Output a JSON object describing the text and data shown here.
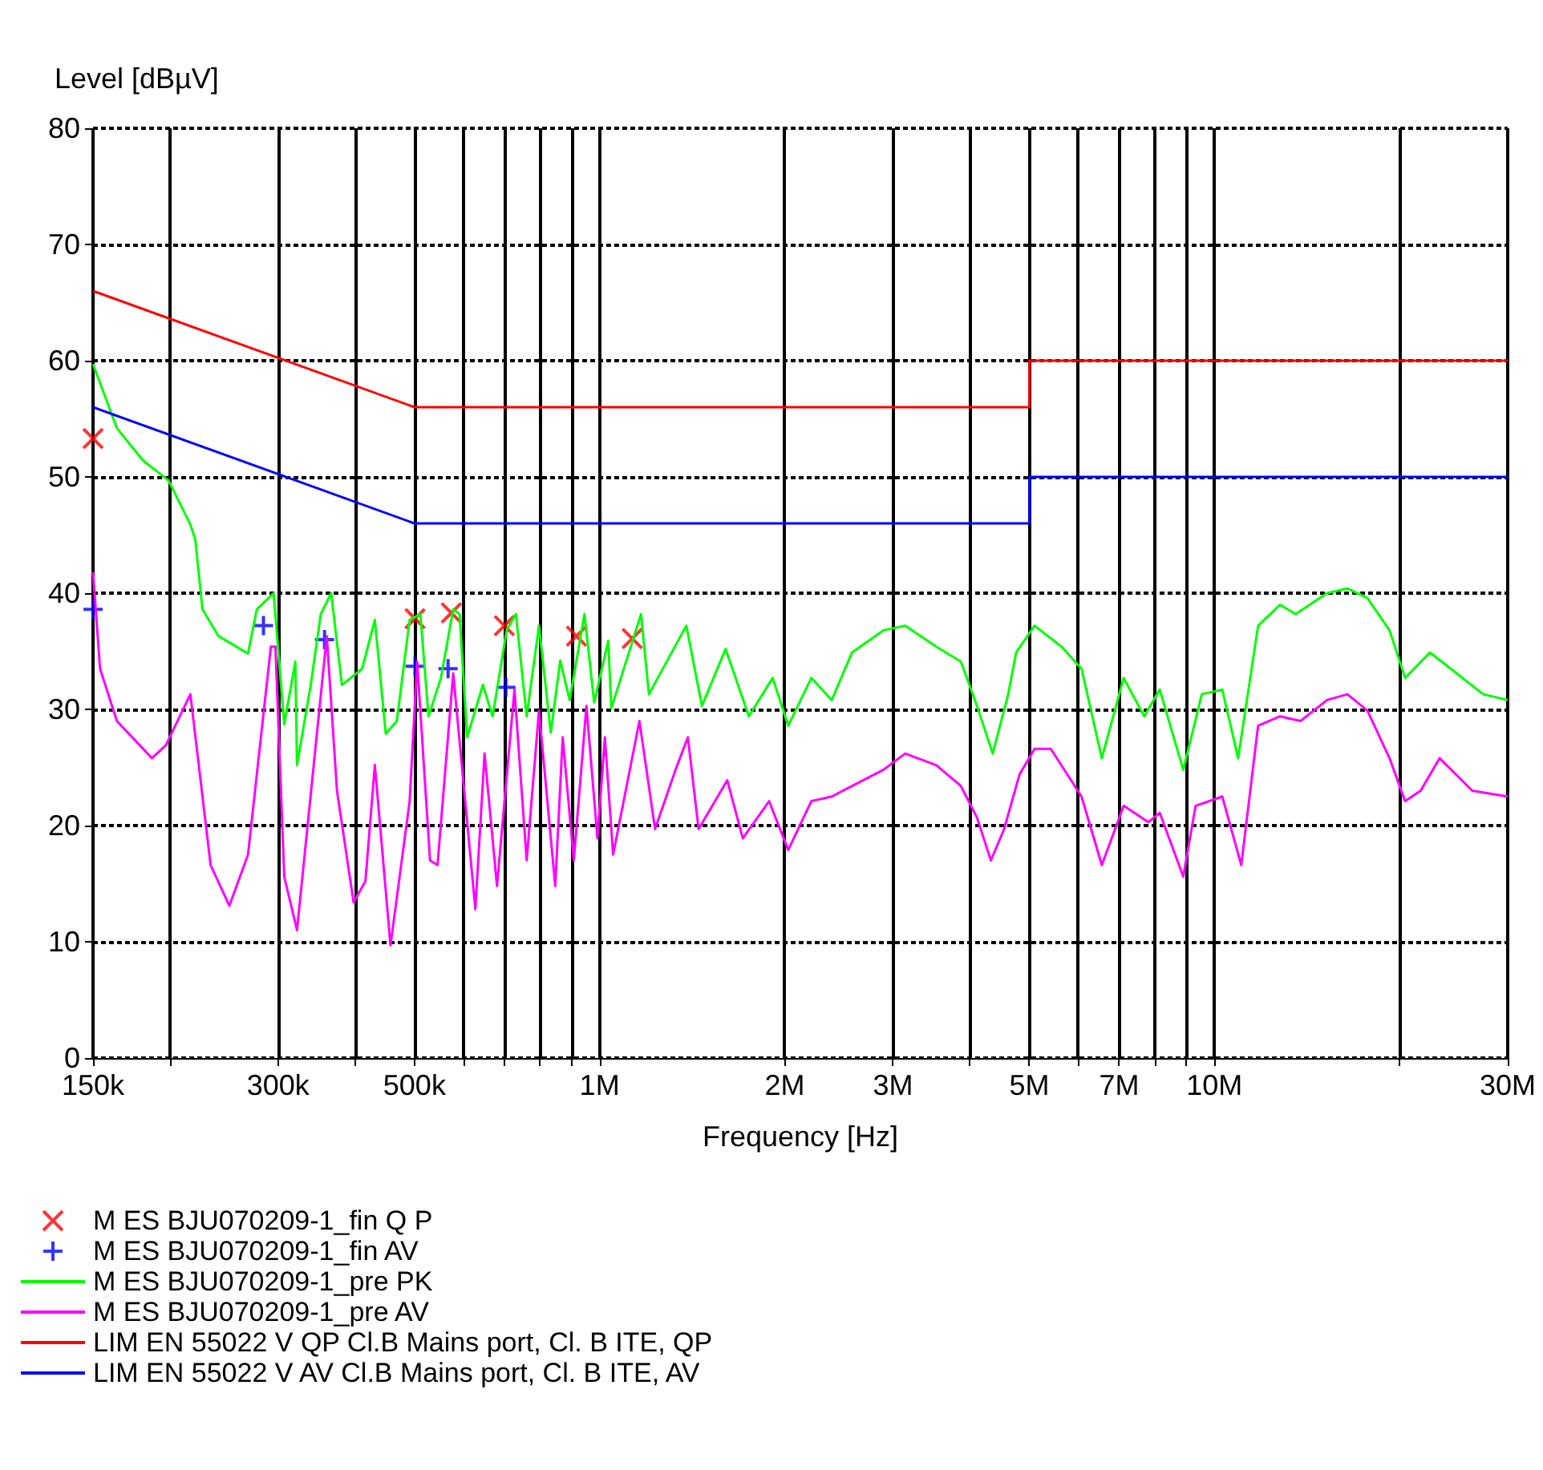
{
  "chart_data": {
    "type": "line",
    "xlabel": "Frequency [Hz]",
    "ylabel": "Level [dBµV]",
    "xlim": [
      150000,
      30000000
    ],
    "ylim": [
      0,
      80
    ],
    "log": "x",
    "grid": true,
    "legend": "bottom",
    "line_style": "solid",
    "xticks": [
      {
        "value": 150000,
        "label": "150k"
      },
      {
        "value": 200000,
        "label": null
      },
      {
        "value": 300000,
        "label": "300k"
      },
      {
        "value": 400000,
        "label": null
      },
      {
        "value": 500000,
        "label": "500k"
      },
      {
        "value": 600000,
        "label": null
      },
      {
        "value": 700000,
        "label": null
      },
      {
        "value": 800000,
        "label": null
      },
      {
        "value": 900000,
        "label": null
      },
      {
        "value": 1000000,
        "label": "1M"
      },
      {
        "value": 2000000,
        "label": "2M"
      },
      {
        "value": 3000000,
        "label": "3M"
      },
      {
        "value": 4000000,
        "label": null
      },
      {
        "value": 5000000,
        "label": "5M"
      },
      {
        "value": 6000000,
        "label": null
      },
      {
        "value": 7000000,
        "label": "7M"
      },
      {
        "value": 8000000,
        "label": null
      },
      {
        "value": 9000000,
        "label": null
      },
      {
        "value": 10000000,
        "label": "10M"
      },
      {
        "value": 20000000,
        "label": null
      },
      {
        "value": 30000000,
        "label": "30M"
      }
    ],
    "yticks": [
      0,
      10,
      20,
      30,
      40,
      50,
      60,
      70,
      80
    ],
    "series": [
      {
        "name": "M ES BJU070209-1_fin Q P",
        "type": "scatter",
        "marker": "cross",
        "color": "#ff0000",
        "x": [
          150000,
          501000,
          574000,
          700000,
          917000,
          1130000
        ],
        "values": [
          53.3,
          37.8,
          38.3,
          37.2,
          36.3,
          36.1
        ]
      },
      {
        "name": "M ES BJU070209-1_fin AV",
        "type": "scatter",
        "marker": "cross",
        "color": "#0000ff",
        "x": [
          150000,
          284000,
          357000,
          501000,
          567000,
          704000
        ],
        "values": [
          38.6,
          37.2,
          36.0,
          33.7,
          33.5,
          31.9
        ]
      },
      {
        "name": "M ES BJU070209-1_pre PK",
        "color": "#00ff00",
        "x": [
          150000,
          164000,
          181000,
          199000,
          216000,
          220000,
          226000,
          240000,
          268000,
          277000,
          295000,
          307000,
          320000,
          322000,
          339000,
          352000,
          366000,
          381000,
          411000,
          431000,
          449000,
          468000,
          491000,
          511000,
          527000,
          552000,
          578000,
          592000,
          609000,
          646000,
          670000,
          706000,
          731000,
          761000,
          797000,
          833000,
          863000,
          894000,
          945000,
          980000,
          1033000,
          1045000,
          1168000,
          1203000,
          1384000,
          1467000,
          1603000,
          1749000,
          1912000,
          2027000,
          2210000,
          2386000,
          2574000,
          2895000,
          3141000,
          3529000,
          3870000,
          4110000,
          4360000,
          4620000,
          4760000,
          5100000,
          5640000,
          6080000,
          6560000,
          7120000,
          7690000,
          8150000,
          8900000,
          9540000,
          10300000,
          10930000,
          11780000,
          12790000,
          13560000,
          15250000,
          16450000,
          17730000,
          19270000,
          20430000,
          22420000,
          24770000,
          27370000,
          30000000
        ],
        "values": [
          59.7,
          54.2,
          51.4,
          49.7,
          45.9,
          44.6,
          38.6,
          36.3,
          34.8,
          38.6,
          40.0,
          28.7,
          34.1,
          25.2,
          32.1,
          38.2,
          40.0,
          32.1,
          33.5,
          37.7,
          27.9,
          29.0,
          37.7,
          38.2,
          29.4,
          32.7,
          38.6,
          38.2,
          27.6,
          32.1,
          29.4,
          36.8,
          38.2,
          29.4,
          37.2,
          28.0,
          34.2,
          30.8,
          38.2,
          30.6,
          35.9,
          30.1,
          38.2,
          31.3,
          37.2,
          30.3,
          35.2,
          29.4,
          32.7,
          28.6,
          32.7,
          30.8,
          34.9,
          36.8,
          37.2,
          35.4,
          34.1,
          30.3,
          26.2,
          31.3,
          34.9,
          37.2,
          35.4,
          33.5,
          25.8,
          32.7,
          29.4,
          31.7,
          24.8,
          31.3,
          31.7,
          25.8,
          37.2,
          39.0,
          38.2,
          40.0,
          40.4,
          39.6,
          36.8,
          32.7,
          34.9,
          33.1,
          31.3,
          30.8
        ]
      },
      {
        "name": "M ES BJU070209-1_pre AV",
        "color": "#ff00ff",
        "x": [
          150000,
          154000,
          164000,
          187000,
          197000,
          216000,
          233000,
          250000,
          268000,
          292000,
          297000,
          307000,
          322000,
          360000,
          374000,
          398000,
          416000,
          431000,
          457000,
          491000,
          505000,
          530000,
          545000,
          578000,
          628000,
          650000,
          681000,
          727000,
          761000,
          797000,
          847000,
          871000,
          908000,
          952000,
          992000,
          1020000,
          1052000,
          1161000,
          1231000,
          1329000,
          1392000,
          1449000,
          1613000,
          1710000,
          1887000,
          2027000,
          2210000,
          2386000,
          2574000,
          2895000,
          3141000,
          3529000,
          3870000,
          4110000,
          4330000,
          4550000,
          4820000,
          5100000,
          5420000,
          6080000,
          6560000,
          7120000,
          7810000,
          8150000,
          8900000,
          9320000,
          10300000,
          11060000,
          11780000,
          12790000,
          13810000,
          15250000,
          16450000,
          17730000,
          19270000,
          20430000,
          21650000,
          23240000,
          26270000,
          30000000
        ],
        "values": [
          41.8,
          33.5,
          29.0,
          25.8,
          26.9,
          31.3,
          16.6,
          13.1,
          17.5,
          35.4,
          35.4,
          15.6,
          11.0,
          36.3,
          23.0,
          13.4,
          15.2,
          25.2,
          9.7,
          22.1,
          34.1,
          17.0,
          16.6,
          33.1,
          12.8,
          26.2,
          14.8,
          31.7,
          17.0,
          29.9,
          14.8,
          27.6,
          17.0,
          30.3,
          18.9,
          27.6,
          17.5,
          29.0,
          19.7,
          24.8,
          27.6,
          19.7,
          23.9,
          18.9,
          22.1,
          17.9,
          22.1,
          22.5,
          23.4,
          24.8,
          26.2,
          25.2,
          23.4,
          20.7,
          17.0,
          19.7,
          24.4,
          26.6,
          26.6,
          22.5,
          16.6,
          21.7,
          20.3,
          21.1,
          15.6,
          21.7,
          22.5,
          16.6,
          28.6,
          29.4,
          29.0,
          30.8,
          31.3,
          29.9,
          25.8,
          22.1,
          23.0,
          25.8,
          23.0,
          22.5
        ]
      },
      {
        "name": "LIM EN 55022 V QP Cl.B Mains port, Cl. B ITE, QP",
        "color": "#ff0000",
        "x": [
          150000,
          500000,
          5000000,
          5000000,
          30000000
        ],
        "values": [
          66,
          56,
          56,
          60,
          60
        ]
      },
      {
        "name": "LIM EN 55022 V AV Cl.B Mains port, Cl. B ITE, AV",
        "color": "#0000ff",
        "x": [
          150000,
          500000,
          5000000,
          5000000,
          30000000
        ],
        "values": [
          56,
          46,
          46,
          50,
          50
        ]
      }
    ]
  }
}
